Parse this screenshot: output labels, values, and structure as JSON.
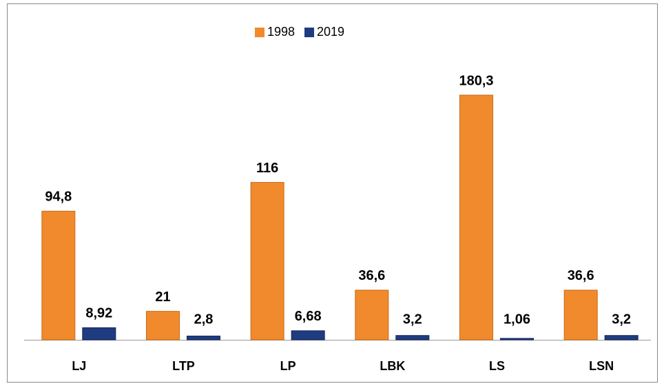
{
  "chart_data": {
    "type": "bar",
    "categories": [
      "LJ",
      "LTP",
      "LP",
      "LBK",
      "LS",
      "LSN"
    ],
    "series": [
      {
        "name": "1998",
        "color": "#f08a2c",
        "values": [
          94.8,
          21,
          116,
          36.6,
          180.3,
          36.6
        ],
        "value_labels": [
          "94,8",
          "21",
          "116",
          "36,6",
          "180,3",
          "36,6"
        ]
      },
      {
        "name": "2019",
        "color": "#1f3c82",
        "values": [
          8.92,
          2.8,
          6.68,
          3.2,
          1.06,
          3.2
        ],
        "value_labels": [
          "8,92",
          "2,8",
          "6,68",
          "3,2",
          "1,06",
          "3,2"
        ]
      }
    ],
    "legend": "top"
  }
}
